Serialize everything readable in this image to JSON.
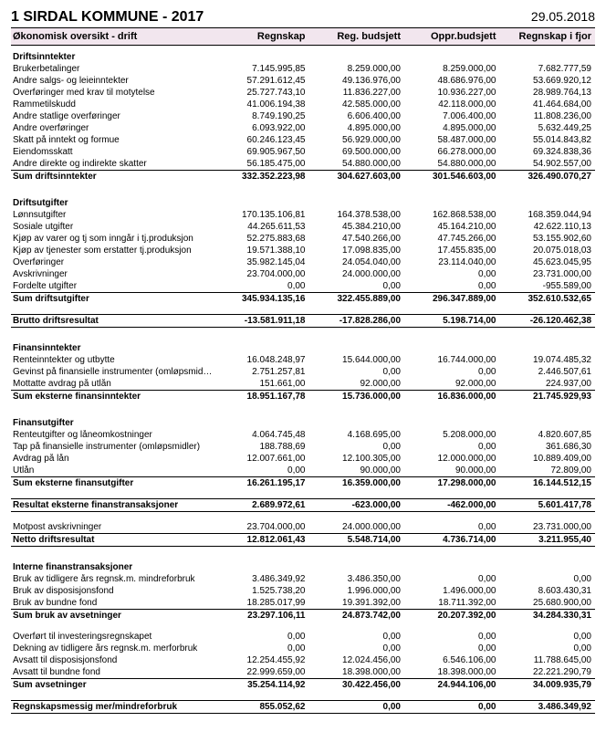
{
  "header": {
    "title": "1 SIRDAL KOMMUNE - 2017",
    "date": "29.05.2018"
  },
  "subheader": {
    "label": "Økonomisk oversikt - drift",
    "cols": [
      "Regnskap",
      "Reg. budsjett",
      "Oppr.budsjett",
      "Regnskap i fjor"
    ]
  },
  "sections": [
    {
      "title": "Driftsinntekter",
      "rows": [
        {
          "lbl": "Brukerbetalinger",
          "v": [
            "7.145.995,85",
            "8.259.000,00",
            "8.259.000,00",
            "7.682.777,59"
          ]
        },
        {
          "lbl": "Andre salgs- og leieinntekter",
          "v": [
            "57.291.612,45",
            "49.136.976,00",
            "48.686.976,00",
            "53.669.920,12"
          ]
        },
        {
          "lbl": "Overføringer med krav til motytelse",
          "v": [
            "25.727.743,10",
            "11.836.227,00",
            "10.936.227,00",
            "28.989.764,13"
          ]
        },
        {
          "lbl": "Rammetilskudd",
          "v": [
            "41.006.194,38",
            "42.585.000,00",
            "42.118.000,00",
            "41.464.684,00"
          ]
        },
        {
          "lbl": "Andre statlige overføringer",
          "v": [
            "8.749.190,25",
            "6.606.400,00",
            "7.006.400,00",
            "11.808.236,00"
          ]
        },
        {
          "lbl": "Andre overføringer",
          "v": [
            "6.093.922,00",
            "4.895.000,00",
            "4.895.000,00",
            "5.632.449,25"
          ]
        },
        {
          "lbl": "Skatt på inntekt og formue",
          "v": [
            "60.246.123,45",
            "56.929.000,00",
            "58.487.000,00",
            "55.014.843,82"
          ]
        },
        {
          "lbl": "Eiendomsskatt",
          "v": [
            "69.905.967,50",
            "69.500.000,00",
            "66.278.000,00",
            "69.324.838,36"
          ]
        },
        {
          "lbl": "Andre direkte og indirekte skatter",
          "v": [
            "56.185.475,00",
            "54.880.000,00",
            "54.880.000,00",
            "54.902.557,00"
          ]
        }
      ],
      "sum": {
        "lbl": "Sum driftsinntekter",
        "v": [
          "332.352.223,98",
          "304.627.603,00",
          "301.546.603,00",
          "326.490.070,27"
        ],
        "cls": "sum"
      }
    },
    {
      "title": "Driftsutgifter",
      "rows": [
        {
          "lbl": "Lønnsutgifter",
          "v": [
            "170.135.106,81",
            "164.378.538,00",
            "162.868.538,00",
            "168.359.044,94"
          ]
        },
        {
          "lbl": "Sosiale utgifter",
          "v": [
            "44.265.611,53",
            "45.384.210,00",
            "45.164.210,00",
            "42.622.110,13"
          ]
        },
        {
          "lbl": "Kjøp av varer og tj som inngår i tj.produksjon",
          "v": [
            "52.275.883,68",
            "47.540.266,00",
            "47.745.266,00",
            "53.155.902,60"
          ]
        },
        {
          "lbl": "Kjøp av tjenester som erstatter tj.produksjon",
          "v": [
            "19.571.388,10",
            "17.098.835,00",
            "17.455.835,00",
            "20.075.018,03"
          ]
        },
        {
          "lbl": "Overføringer",
          "v": [
            "35.982.145,04",
            "24.054.040,00",
            "23.114.040,00",
            "45.623.045,95"
          ]
        },
        {
          "lbl": "Avskrivninger",
          "v": [
            "23.704.000,00",
            "24.000.000,00",
            "0,00",
            "23.731.000,00"
          ]
        },
        {
          "lbl": "Fordelte utgifter",
          "v": [
            "0,00",
            "0,00",
            "0,00",
            "-955.589,00"
          ]
        }
      ],
      "sum": {
        "lbl": "Sum driftsutgifter",
        "v": [
          "345.934.135,16",
          "322.455.889,00",
          "296.347.889,00",
          "352.610.532,65"
        ],
        "cls": "sum"
      }
    },
    {
      "sum": {
        "lbl": "Brutto driftsresultat",
        "v": [
          "-13.581.911,18",
          "-17.828.286,00",
          "5.198.714,00",
          "-26.120.462,38"
        ],
        "cls": "sum-dbl"
      }
    },
    {
      "title": "Finansinntekter",
      "rows": [
        {
          "lbl": "Renteinntekter og utbytte",
          "v": [
            "16.048.248,97",
            "15.644.000,00",
            "16.744.000,00",
            "19.074.485,32"
          ]
        },
        {
          "lbl": "Gevinst på finansielle instrumenter (omløpsmidler)",
          "v": [
            "2.751.257,81",
            "0,00",
            "0,00",
            "2.446.507,61"
          ]
        },
        {
          "lbl": "Mottatte avdrag på utlån",
          "v": [
            "151.661,00",
            "92.000,00",
            "92.000,00",
            "224.937,00"
          ]
        }
      ],
      "sum": {
        "lbl": "Sum eksterne finansinntekter",
        "v": [
          "18.951.167,78",
          "15.736.000,00",
          "16.836.000,00",
          "21.745.929,93"
        ],
        "cls": "sum"
      }
    },
    {
      "title": "Finansutgifter",
      "rows": [
        {
          "lbl": "Renteutgifter og låneomkostninger",
          "v": [
            "4.064.745,48",
            "4.168.695,00",
            "5.208.000,00",
            "4.820.607,85"
          ]
        },
        {
          "lbl": "Tap på finansielle instrumenter (omløpsmidler)",
          "v": [
            "188.788,69",
            "0,00",
            "0,00",
            "361.686,30"
          ]
        },
        {
          "lbl": "Avdrag på lån",
          "v": [
            "12.007.661,00",
            "12.100.305,00",
            "12.000.000,00",
            "10.889.409,00"
          ]
        },
        {
          "lbl": "Utlån",
          "v": [
            "0,00",
            "90.000,00",
            "90.000,00",
            "72.809,00"
          ]
        }
      ],
      "sum": {
        "lbl": "Sum eksterne finansutgifter",
        "v": [
          "16.261.195,17",
          "16.359.000,00",
          "17.298.000,00",
          "16.144.512,15"
        ],
        "cls": "sum"
      }
    },
    {
      "sum": {
        "lbl": "Resultat eksterne finanstransaksjoner",
        "v": [
          "2.689.972,61",
          "-623.000,00",
          "-462.000,00",
          "5.601.417,78"
        ],
        "cls": "sum-dbl"
      }
    },
    {
      "rows": [
        {
          "lbl": "Motpost avskrivninger",
          "v": [
            "23.704.000,00",
            "24.000.000,00",
            "0,00",
            "23.731.000,00"
          ]
        }
      ],
      "sum": {
        "lbl": "Netto driftsresultat",
        "v": [
          "12.812.061,43",
          "5.548.714,00",
          "4.736.714,00",
          "3.211.955,40"
        ],
        "cls": "sum-dbl"
      }
    },
    {
      "title": "Interne finanstransaksjoner",
      "rows": [
        {
          "lbl": "Bruk av tidligere års regnsk.m. mindreforbruk",
          "v": [
            "3.486.349,92",
            "3.486.350,00",
            "0,00",
            "0,00"
          ]
        },
        {
          "lbl": "Bruk av disposisjonsfond",
          "v": [
            "1.525.738,20",
            "1.996.000,00",
            "1.496.000,00",
            "8.603.430,31"
          ]
        },
        {
          "lbl": "Bruk av bundne fond",
          "v": [
            "18.285.017,99",
            "19.391.392,00",
            "18.711.392,00",
            "25.680.900,00"
          ]
        }
      ],
      "sum": {
        "lbl": "Sum bruk av avsetninger",
        "v": [
          "23.297.106,11",
          "24.873.742,00",
          "20.207.392,00",
          "34.284.330,31"
        ],
        "cls": "sum"
      }
    },
    {
      "rows": [
        {
          "lbl": "Overført til investeringsregnskapet",
          "v": [
            "0,00",
            "0,00",
            "0,00",
            "0,00"
          ]
        },
        {
          "lbl": "Dekning av tidligere års regnsk.m. merforbruk",
          "v": [
            "0,00",
            "0,00",
            "0,00",
            "0,00"
          ]
        },
        {
          "lbl": "Avsatt til disposisjonsfond",
          "v": [
            "12.254.455,92",
            "12.024.456,00",
            "6.546.106,00",
            "11.788.645,00"
          ]
        },
        {
          "lbl": "Avsatt til bundne fond",
          "v": [
            "22.999.659,00",
            "18.398.000,00",
            "18.398.000,00",
            "22.221.290,79"
          ]
        }
      ],
      "sum": {
        "lbl": "Sum avsetninger",
        "v": [
          "35.254.114,92",
          "30.422.456,00",
          "24.944.106,00",
          "34.009.935,79"
        ],
        "cls": "sum"
      }
    },
    {
      "sum": {
        "lbl": "Regnskapsmessig mer/mindreforbruk",
        "v": [
          "855.052,62",
          "0,00",
          "0,00",
          "3.486.349,92"
        ],
        "cls": "sum-dbl"
      }
    }
  ]
}
